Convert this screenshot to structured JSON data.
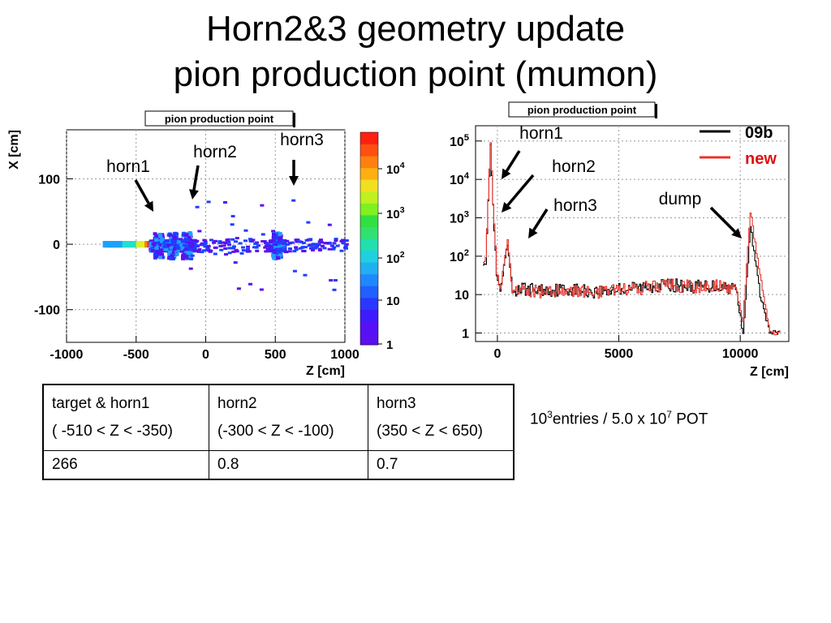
{
  "slide": {
    "title_line1": "Horn2&3 geometry update",
    "title_line2": "pion production point (mumon)"
  },
  "chart_data": [
    {
      "type": "heatmap",
      "title": "pion production point",
      "xlabel": "Z [cm]",
      "ylabel": "X [cm]",
      "xlim": [
        -1000,
        1000
      ],
      "ylim": [
        -150,
        175
      ],
      "xticks": [
        "-1000",
        "-500",
        "0",
        "500",
        "1000"
      ],
      "yticks": [
        "100",
        "0",
        "-100"
      ],
      "colorbar": {
        "scale": "log",
        "ticks": [
          "1",
          "10",
          "10^2",
          "10^3",
          "10^4"
        ]
      },
      "grid": true,
      "clusters": [
        {
          "z": -350,
          "x": 0,
          "level": 4
        },
        {
          "z": -250,
          "x": 0,
          "level": 3
        },
        {
          "z": -150,
          "x": 0,
          "level": 2
        },
        {
          "z": 500,
          "x": 0,
          "level": 2
        }
      ],
      "annotations": [
        {
          "label": "horn1",
          "points_to_z": -380
        },
        {
          "label": "horn2",
          "points_to_z": -170
        },
        {
          "label": "horn3",
          "points_to_z": 640
        }
      ]
    },
    {
      "type": "line",
      "title": "pion production point",
      "xlabel": "Z [cm]",
      "ylabel": "",
      "xlim": [
        -900,
        12000
      ],
      "ylim": [
        0.6,
        250000
      ],
      "yscale": "log",
      "xticks": [
        "0",
        "5000",
        "10000"
      ],
      "yticks": [
        "1",
        "10",
        "10^2",
        "10^3",
        "10^4",
        "10^5"
      ],
      "grid": true,
      "legend_position": "top-right",
      "series": [
        {
          "name": "09b",
          "color": "#000000",
          "x": [
            -500,
            -300,
            -200,
            -50,
            100,
            400,
            600,
            1000,
            2000,
            3000,
            4000,
            5000,
            6000,
            7000,
            8000,
            9000,
            9800,
            10100,
            10400,
            10600,
            10800,
            11200,
            11500
          ],
          "y": [
            70,
            80000,
            2000,
            30,
            12,
            200,
            12,
            14,
            13,
            14,
            12,
            14,
            16,
            18,
            16,
            17,
            15,
            1,
            600,
            80,
            10,
            1,
            1
          ]
        },
        {
          "name": "new",
          "color": "#e8342c",
          "x": [
            -500,
            -300,
            -200,
            -50,
            100,
            400,
            600,
            1000,
            2000,
            3000,
            4000,
            5000,
            6000,
            7000,
            8000,
            9000,
            9800,
            10100,
            10400,
            10600,
            10800,
            11200,
            11500
          ],
          "y": [
            80,
            100000,
            2500,
            40,
            13,
            250,
            12,
            13,
            12,
            13,
            11,
            13,
            15,
            17,
            16,
            17,
            14,
            2,
            1500,
            200,
            30,
            1,
            1
          ]
        }
      ],
      "legend_entries": [
        "09b",
        "new"
      ],
      "annotations": [
        {
          "label": "horn1",
          "points_to_z": 0
        },
        {
          "label": "horn2",
          "points_to_z": 0
        },
        {
          "label": "horn3",
          "points_to_z": 1000
        },
        {
          "label": "dump",
          "points_to_z": 10000
        }
      ]
    }
  ],
  "table": {
    "headers": [
      {
        "line1": "target & horn1",
        "line2": "( -510 < Z < -350)"
      },
      {
        "line1": "horn2",
        "line2": "(-300 < Z < -100)"
      },
      {
        "line1": "horn3",
        "line2": "(350 < Z < 650)"
      }
    ],
    "values": [
      "266",
      "0.8",
      "0.7"
    ]
  },
  "note": {
    "base": "10",
    "exp": "3",
    "text": "entries / 5.0 x 10",
    "exp2": "7",
    "suffix": " POT"
  }
}
